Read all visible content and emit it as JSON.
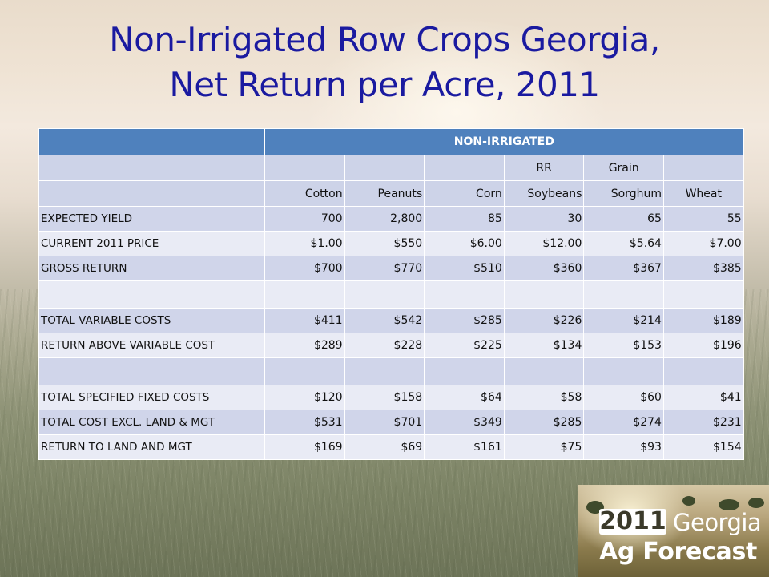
{
  "title": {
    "line1": "Non-Irrigated Row Crops Georgia,",
    "line2": "Net Return per Acre, 2011"
  },
  "table": {
    "band_label": "NON-IRRIGATED",
    "header_row1": [
      "",
      "",
      "",
      "RR",
      "Grain",
      ""
    ],
    "header_row2": [
      "Cotton",
      "Peanuts",
      "Corn",
      "Soybeans",
      "Sorghum",
      "Wheat"
    ],
    "rows": [
      {
        "label": "EXPECTED YIELD",
        "values": [
          "700",
          "2,800",
          "85",
          "30",
          "65",
          "55"
        ]
      },
      {
        "label": "CURRENT 2011 PRICE",
        "values": [
          "$1.00",
          "$550",
          "$6.00",
          "$12.00",
          "$5.64",
          "$7.00"
        ]
      },
      {
        "label": "GROSS RETURN",
        "values": [
          "$700",
          "$770",
          "$510",
          "$360",
          "$367",
          "$385"
        ]
      },
      {
        "label": "TOTAL VARIABLE COSTS",
        "values": [
          "$411",
          "$542",
          "$285",
          "$226",
          "$214",
          "$189"
        ]
      },
      {
        "label": "RETURN ABOVE VARIABLE COST",
        "values": [
          "$289",
          "$228",
          "$225",
          "$134",
          "$153",
          "$196"
        ]
      },
      {
        "label": "TOTAL SPECIFIED FIXED COSTS",
        "values": [
          "$120",
          "$158",
          "$64",
          "$58",
          "$60",
          "$41"
        ]
      },
      {
        "label": "TOTAL COST EXCL. LAND & MGT",
        "values": [
          "$531",
          "$701",
          "$349",
          "$285",
          "$274",
          "$231"
        ]
      },
      {
        "label": "RETURN TO LAND AND MGT",
        "values": [
          "$169",
          "$69",
          "$161",
          "$75",
          "$93",
          "$154"
        ]
      }
    ]
  },
  "logo": {
    "year": "2011",
    "state": "Georgia",
    "subtitle": "Ag Forecast"
  },
  "colors": {
    "title": "#1a1aa0",
    "band": "#4f81bd",
    "row_dark": "#d0d5ea",
    "row_light": "#e9ebf5"
  }
}
